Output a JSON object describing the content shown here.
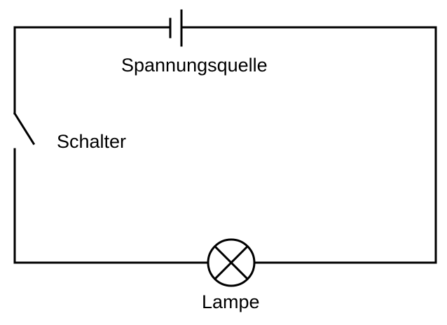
{
  "diagram": {
    "labels": {
      "source": "Spannungsquelle",
      "switch": "Schalter",
      "lamp": "Lampe"
    },
    "stroke_color": "#000000",
    "background_color": "#ffffff",
    "components": {
      "source": "battery-cell-symbol",
      "switch": "open-switch-symbol",
      "lamp": "lamp-symbol"
    }
  }
}
